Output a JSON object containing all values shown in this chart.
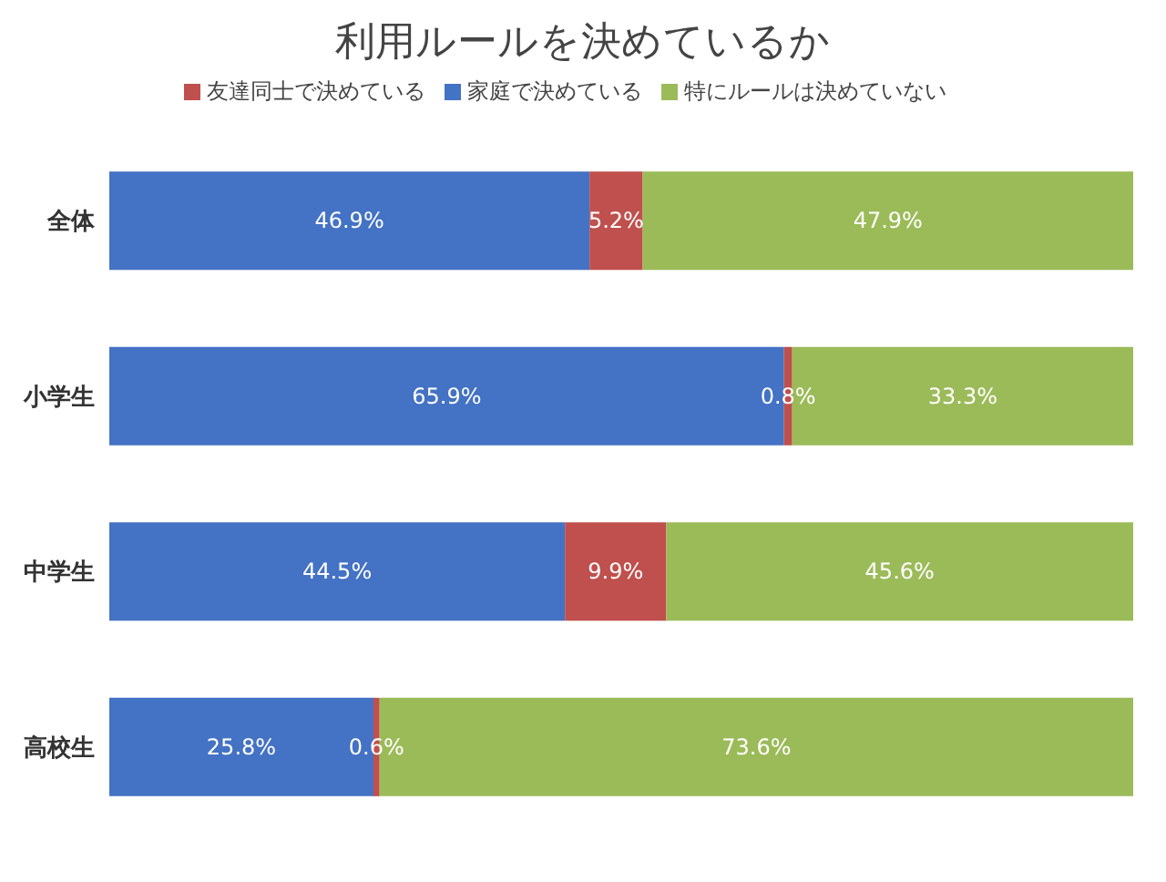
{
  "chart_data": {
    "type": "bar",
    "title": "利用ルールを決めているか",
    "orientation": "horizontal",
    "stacked": true,
    "categories": [
      "全体",
      "小学生",
      "中学生",
      "高校生"
    ],
    "xlim": [
      0,
      100
    ],
    "tick_labels": "y",
    "legend": "top",
    "grid": false,
    "series": [
      {
        "name": "家庭で決めている",
        "color": "#4472c4",
        "values": [
          46.9,
          65.9,
          44.5,
          25.8
        ],
        "value_labels": [
          "46.9%",
          "65.9%",
          "44.5%",
          "25.8%"
        ]
      },
      {
        "name": "友達同士で決めている",
        "color": "#c0504d",
        "values": [
          5.2,
          0.8,
          9.9,
          0.6
        ],
        "value_labels": [
          "5.2%",
          "0.8%",
          "9.9%",
          "0.6%"
        ]
      },
      {
        "name": "特にルールは決めていない",
        "color": "#9bbb59",
        "values": [
          47.9,
          33.3,
          45.6,
          73.6
        ],
        "value_labels": [
          "47.9%",
          "33.3%",
          "45.6%",
          "73.6%"
        ]
      }
    ]
  }
}
